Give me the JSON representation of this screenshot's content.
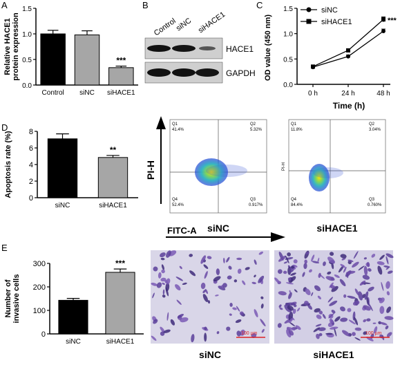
{
  "panels": {
    "A": {
      "letter": "A"
    },
    "B": {
      "letter": "B",
      "lanes": [
        "Control",
        "siNC",
        "siHACE1"
      ],
      "bands": [
        "HACE1",
        "GAPDH"
      ]
    },
    "C": {
      "letter": "C"
    },
    "D": {
      "letter": "D",
      "flow_axis_x": "FITC-A",
      "flow_axis_y": "PI-H",
      "plots": [
        {
          "caption": "siNC",
          "q1": "Q1",
          "q1v": "41.4%",
          "q2": "Q2",
          "q2v": "5.32%",
          "q3": "Q3",
          "q3v": "0.917%",
          "q4": "Q4",
          "q4v": "52.4%",
          "yaxis": ""
        },
        {
          "caption": "siHACE1",
          "q1": "Q1",
          "q1v": "11.8%",
          "q2": "Q2",
          "q2v": "3.04%",
          "q3": "Q3",
          "q3v": "0.760%",
          "q4": "Q4",
          "q4v": "84.4%",
          "yaxis": "PI-H"
        }
      ]
    },
    "E": {
      "letter": "E",
      "images": [
        "siNC",
        "siHACE1"
      ],
      "scalebar": "100 µm"
    }
  },
  "chart_data": [
    {
      "id": "A",
      "type": "bar",
      "categories": [
        "Control",
        "siNC",
        "siHACE1"
      ],
      "values": [
        1.0,
        0.98,
        0.34
      ],
      "errors": [
        0.07,
        0.08,
        0.03
      ],
      "colors": [
        "#000000",
        "#a6a6a6",
        "#a6a6a6"
      ],
      "ylabel": "Relative HACE1 protein expression",
      "ylim": [
        0,
        1.5
      ],
      "yticks": [
        "0.0",
        "0.5",
        "1.0",
        "1.5"
      ],
      "annotations": [
        {
          "category": "siHACE1",
          "text": "***"
        }
      ]
    },
    {
      "id": "C",
      "type": "line",
      "x": [
        "0 h",
        "24 h",
        "48 h"
      ],
      "xlabel": "Time (h)",
      "ylabel": "OD value (450 nm)",
      "ylim": [
        0.0,
        1.5
      ],
      "yticks": [
        "0.0",
        "0.5",
        "1.0",
        "1.5"
      ],
      "series": [
        {
          "name": "siNC",
          "marker": "circle",
          "values": [
            0.34,
            0.55,
            1.05
          ],
          "errors": [
            0.02,
            0.03,
            0.04
          ]
        },
        {
          "name": "siHACE1",
          "marker": "square",
          "values": [
            0.35,
            0.67,
            1.28
          ],
          "errors": [
            0.02,
            0.03,
            0.05
          ]
        }
      ],
      "legend": "top-left",
      "annotations": [
        {
          "x": "48 h",
          "text": "***"
        }
      ]
    },
    {
      "id": "D",
      "type": "bar",
      "categories": [
        "siNC",
        "siHACE1"
      ],
      "values": [
        7.1,
        4.85
      ],
      "errors": [
        0.6,
        0.25
      ],
      "colors": [
        "#000000",
        "#a6a6a6"
      ],
      "ylabel": "Apoptosis rate (%)",
      "ylim": [
        0,
        8
      ],
      "yticks": [
        "0",
        "2",
        "4",
        "6",
        "8"
      ],
      "annotations": [
        {
          "category": "siHACE1",
          "text": "**"
        }
      ]
    },
    {
      "id": "E",
      "type": "bar",
      "categories": [
        "siNC",
        "siHACE1"
      ],
      "values": [
        143,
        262
      ],
      "errors": [
        8,
        14
      ],
      "colors": [
        "#000000",
        "#a6a6a6"
      ],
      "ylabel": "Number of invasive cells",
      "ylim": [
        0,
        300
      ],
      "yticks": [
        "0",
        "100",
        "200",
        "300"
      ],
      "annotations": [
        {
          "category": "siHACE1",
          "text": "***"
        }
      ]
    }
  ]
}
